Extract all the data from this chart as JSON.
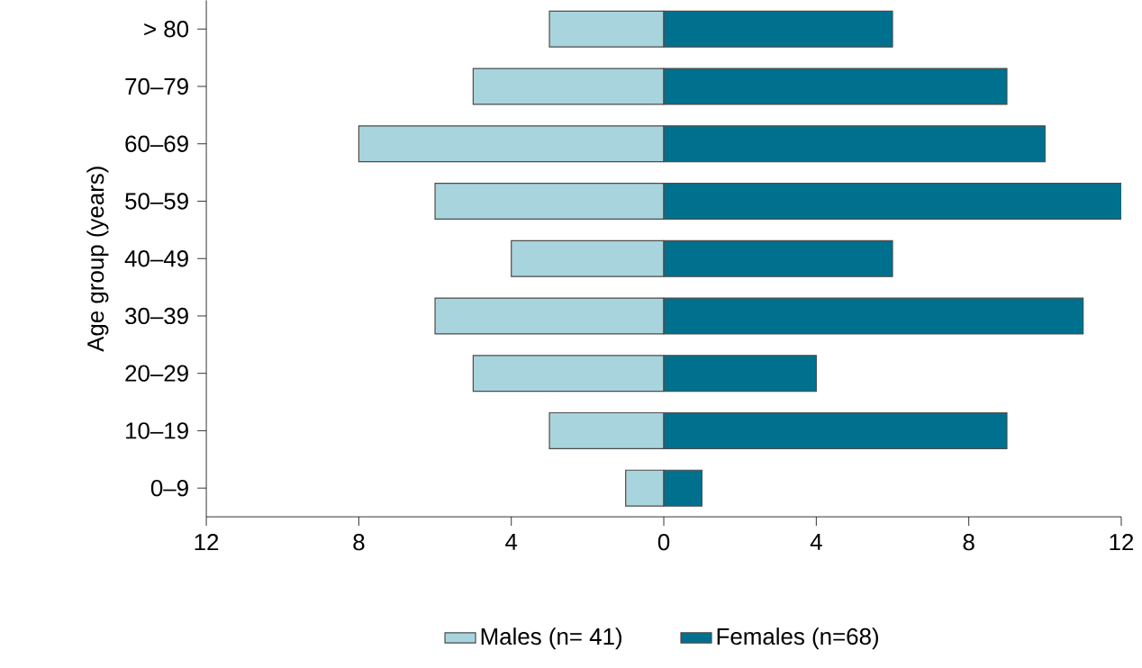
{
  "chart_data": {
    "type": "bar",
    "orientation": "horizontal",
    "ylabel": "Age group (years)",
    "categories": [
      "> 80",
      "70–79",
      "60–69",
      "50–59",
      "40–49",
      "30–39",
      "20–29",
      "10–19",
      "0–9"
    ],
    "series": [
      {
        "name": "Males (n= 41)",
        "color": "#a8d4de",
        "values": [
          -3,
          -5,
          -8,
          -6,
          -4,
          -6,
          -5,
          -3,
          -1
        ]
      },
      {
        "name": "Females (n=68)",
        "color": "#00708f",
        "values": [
          6,
          9,
          10,
          12,
          6,
          11,
          4,
          9,
          1
        ]
      }
    ],
    "xlim": [
      -12,
      12
    ],
    "xticks": [
      {
        "value": -12,
        "label": "12"
      },
      {
        "value": -8,
        "label": "8"
      },
      {
        "value": -4,
        "label": "4"
      },
      0,
      4,
      8,
      12
    ],
    "stacked": true,
    "legend": "bottom",
    "grid": false
  }
}
